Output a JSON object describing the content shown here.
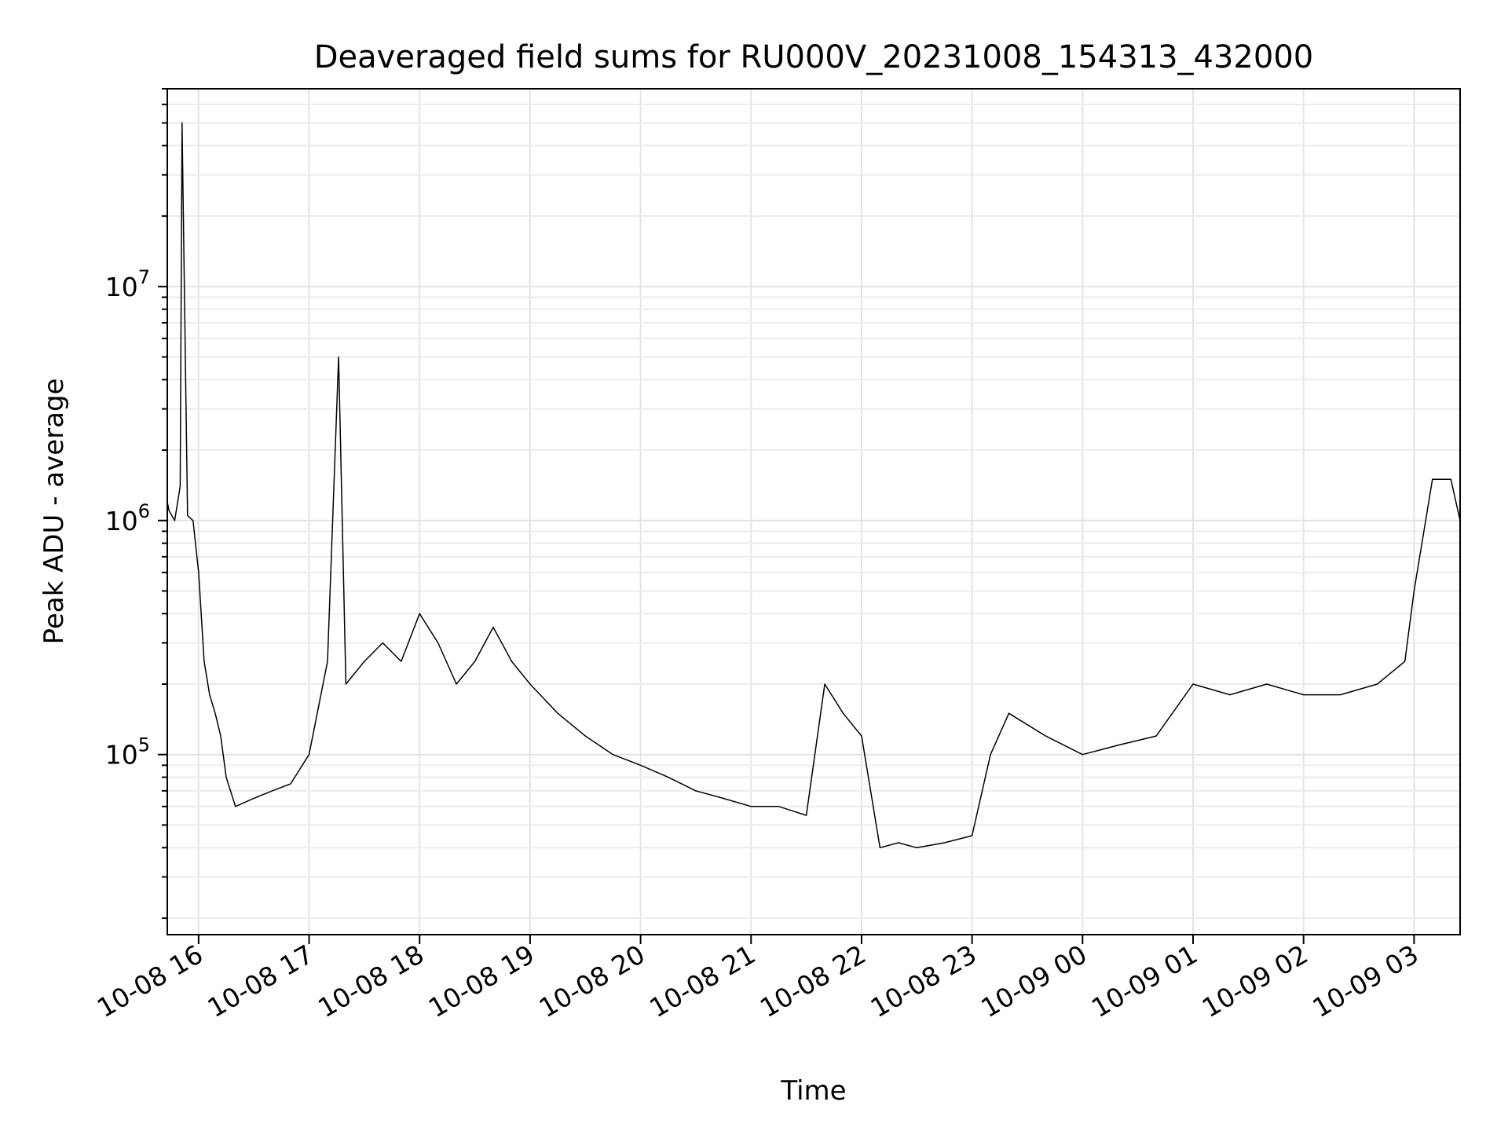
{
  "chart_data": {
    "type": "line",
    "title": "Deaveraged field sums for RU000V_20231008_154313_432000",
    "xlabel": "Time",
    "ylabel": "Peak ADU - average",
    "yscale": "log",
    "xlim": [
      "2023-10-08 15:43",
      "2023-10-09 03:25"
    ],
    "ylim": [
      17000,
      70000000
    ],
    "grid": true,
    "line_color": "#000000",
    "x_ticks": [
      "10-08 16",
      "10-08 17",
      "10-08 18",
      "10-08 19",
      "10-08 20",
      "10-08 21",
      "10-08 22",
      "10-08 23",
      "10-09 00",
      "10-09 01",
      "10-09 02",
      "10-09 03"
    ],
    "x_tick_times": [
      "2023-10-08 16:00",
      "2023-10-08 17:00",
      "2023-10-08 18:00",
      "2023-10-08 19:00",
      "2023-10-08 20:00",
      "2023-10-08 21:00",
      "2023-10-08 22:00",
      "2023-10-08 23:00",
      "2023-10-09 00:00",
      "2023-10-09 01:00",
      "2023-10-09 02:00",
      "2023-10-09 03:00"
    ],
    "y_ticks": [
      {
        "value": 100000,
        "base": "10",
        "exp": "5"
      },
      {
        "value": 1000000,
        "base": "10",
        "exp": "6"
      },
      {
        "value": 10000000,
        "base": "10",
        "exp": "7"
      }
    ],
    "series": [
      {
        "x": [
          "2023-10-08 15:43",
          "2023-10-08 15:44",
          "2023-10-08 15:47",
          "2023-10-08 15:50",
          "2023-10-08 15:51",
          "2023-10-08 15:54",
          "2023-10-08 15:57",
          "2023-10-08 16:00",
          "2023-10-08 16:03",
          "2023-10-08 16:06",
          "2023-10-08 16:09",
          "2023-10-08 16:12",
          "2023-10-08 16:15",
          "2023-10-08 16:20",
          "2023-10-08 16:30",
          "2023-10-08 16:40",
          "2023-10-08 16:50",
          "2023-10-08 17:00",
          "2023-10-08 17:10",
          "2023-10-08 17:16",
          "2023-10-08 17:20",
          "2023-10-08 17:30",
          "2023-10-08 17:40",
          "2023-10-08 17:50",
          "2023-10-08 18:00",
          "2023-10-08 18:10",
          "2023-10-08 18:20",
          "2023-10-08 18:30",
          "2023-10-08 18:40",
          "2023-10-08 18:50",
          "2023-10-08 19:00",
          "2023-10-08 19:15",
          "2023-10-08 19:30",
          "2023-10-08 19:45",
          "2023-10-08 20:00",
          "2023-10-08 20:15",
          "2023-10-08 20:30",
          "2023-10-08 20:45",
          "2023-10-08 21:00",
          "2023-10-08 21:15",
          "2023-10-08 21:30",
          "2023-10-08 21:40",
          "2023-10-08 21:50",
          "2023-10-08 22:00",
          "2023-10-08 22:10",
          "2023-10-08 22:20",
          "2023-10-08 22:30",
          "2023-10-08 22:45",
          "2023-10-08 23:00",
          "2023-10-08 23:10",
          "2023-10-08 23:20",
          "2023-10-08 23:40",
          "2023-10-09 00:00",
          "2023-10-09 00:20",
          "2023-10-09 00:40",
          "2023-10-09 01:00",
          "2023-10-09 01:20",
          "2023-10-09 01:40",
          "2023-10-09 02:00",
          "2023-10-09 02:20",
          "2023-10-09 02:40",
          "2023-10-09 02:55",
          "2023-10-09 03:00",
          "2023-10-09 03:10",
          "2023-10-09 03:20",
          "2023-10-09 03:25"
        ],
        "y": [
          1200000,
          1100000,
          1000000,
          1400000,
          50000000,
          1050000,
          1000000,
          600000,
          250000,
          180000,
          150000,
          120000,
          80000,
          60000,
          65000,
          70000,
          75000,
          100000,
          250000,
          5000000,
          200000,
          250000,
          300000,
          250000,
          400000,
          300000,
          200000,
          250000,
          350000,
          250000,
          200000,
          150000,
          120000,
          100000,
          90000,
          80000,
          70000,
          65000,
          60000,
          60000,
          55000,
          200000,
          150000,
          120000,
          40000,
          42000,
          40000,
          42000,
          45000,
          100000,
          150000,
          120000,
          100000,
          110000,
          120000,
          200000,
          180000,
          200000,
          180000,
          180000,
          200000,
          250000,
          500000,
          1500000,
          1500000,
          1000000
        ]
      }
    ]
  }
}
